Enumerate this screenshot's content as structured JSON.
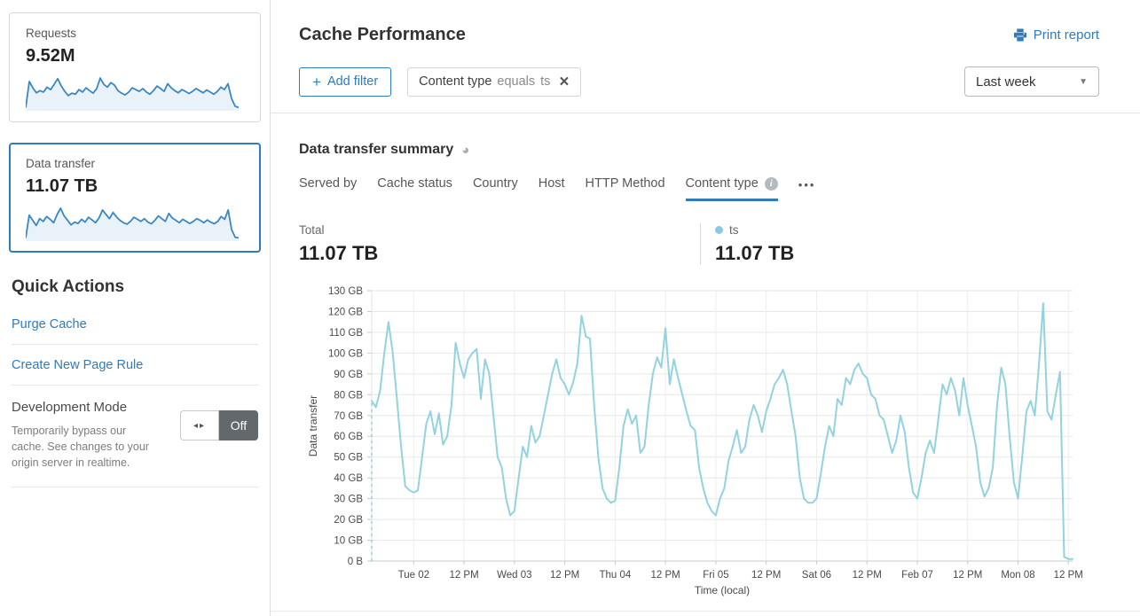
{
  "icons": {
    "plus": "+",
    "close": "×",
    "caret": "▼",
    "ellipsis": "•••",
    "toggle_arrows": "◂▸",
    "pie": "◕",
    "info": "i"
  },
  "sidebar": {
    "cards": [
      {
        "label": "Requests",
        "value": "9.52M",
        "selected": false,
        "sparkline": [
          4,
          78,
          60,
          46,
          52,
          48,
          62,
          55,
          70,
          86,
          66,
          50,
          38,
          45,
          42,
          55,
          48,
          60,
          52,
          45,
          58,
          88,
          70,
          62,
          75,
          68,
          52,
          45,
          40,
          48,
          60,
          55,
          50,
          58,
          48,
          42,
          52,
          65,
          58,
          50,
          72,
          60,
          52,
          46,
          55,
          50,
          44,
          50,
          58,
          52,
          46,
          54,
          48,
          42,
          50,
          62,
          55,
          72,
          30,
          8,
          4
        ]
      },
      {
        "label": "Data transfer",
        "value": "11.07 TB",
        "selected": true,
        "sparkline": [
          4,
          70,
          55,
          40,
          60,
          52,
          66,
          58,
          48,
          72,
          90,
          68,
          55,
          42,
          50,
          46,
          58,
          50,
          64,
          56,
          48,
          62,
          85,
          72,
          60,
          78,
          65,
          55,
          48,
          44,
          52,
          64,
          58,
          52,
          60,
          50,
          45,
          55,
          68,
          60,
          52,
          75,
          62,
          55,
          48,
          58,
          52,
          46,
          52,
          60,
          55,
          48,
          56,
          50,
          45,
          52,
          66,
          58,
          85,
          28,
          6,
          4
        ]
      }
    ],
    "quick_actions": {
      "title": "Quick Actions",
      "links": [
        "Purge Cache",
        "Create New Page Rule"
      ],
      "dev_mode": {
        "label": "Development Mode",
        "description": "Temporarily bypass our cache. See changes to your origin server in realtime.",
        "toggle_state": "Off"
      }
    }
  },
  "header": {
    "title": "Cache Performance",
    "print_label": "Print report"
  },
  "filters": {
    "add_filter_label": "Add filter",
    "chip": {
      "field": "Content type",
      "operator": "equals",
      "value": "ts"
    },
    "time_range": "Last week"
  },
  "summary": {
    "title": "Data transfer summary",
    "tabs": [
      {
        "label": "Served by",
        "active": false,
        "has_info": false
      },
      {
        "label": "Cache status",
        "active": false,
        "has_info": false
      },
      {
        "label": "Country",
        "active": false,
        "has_info": false
      },
      {
        "label": "Host",
        "active": false,
        "has_info": false
      },
      {
        "label": "HTTP Method",
        "active": false,
        "has_info": false
      },
      {
        "label": "Content type",
        "active": true,
        "has_info": true
      }
    ],
    "total_label": "Total",
    "total_value": "11.07 TB",
    "legend": {
      "name": "ts",
      "value": "11.07 TB",
      "color": "#8bc7e1"
    }
  },
  "chart_data": {
    "type": "line",
    "title": "Data transfer summary — ts (hourly, last week)",
    "xlabel": "Time (local)",
    "ylabel": "Data transfer",
    "ylim": [
      0,
      130
    ],
    "grid": true,
    "start_gap_dashed_line": true,
    "y_ticks": [
      [
        0,
        "0 B"
      ],
      [
        10,
        "10 GB"
      ],
      [
        20,
        "20 GB"
      ],
      [
        30,
        "30 GB"
      ],
      [
        40,
        "40 GB"
      ],
      [
        50,
        "50 GB"
      ],
      [
        60,
        "60 GB"
      ],
      [
        70,
        "70 GB"
      ],
      [
        80,
        "80 GB"
      ],
      [
        90,
        "90 GB"
      ],
      [
        100,
        "100 GB"
      ],
      [
        110,
        "110 GB"
      ],
      [
        120,
        "120 GB"
      ],
      [
        130,
        "130 GB"
      ]
    ],
    "x_ticks": [
      [
        10,
        "Tue 02"
      ],
      [
        22,
        "12 PM"
      ],
      [
        34,
        "Wed 03"
      ],
      [
        46,
        "12 PM"
      ],
      [
        58,
        "Thu 04"
      ],
      [
        70,
        "12 PM"
      ],
      [
        82,
        "Fri 05"
      ],
      [
        94,
        "12 PM"
      ],
      [
        106,
        "Sat 06"
      ],
      [
        118,
        "12 PM"
      ],
      [
        130,
        "Feb 07"
      ],
      [
        142,
        "12 PM"
      ],
      [
        154,
        "Mon 08"
      ],
      [
        166,
        "12 PM"
      ]
    ],
    "series": [
      {
        "name": "ts",
        "color": "#92d3de",
        "unit": "GB",
        "values": [
          77,
          74,
          82,
          100,
          115,
          100,
          78,
          55,
          36,
          34,
          33,
          34,
          50,
          66,
          72,
          61,
          71,
          56,
          60,
          75,
          105,
          95,
          88,
          97,
          100,
          102,
          78,
          97,
          90,
          70,
          50,
          45,
          30,
          22,
          24,
          40,
          55,
          50,
          65,
          57,
          60,
          70,
          80,
          90,
          97,
          88,
          85,
          80,
          86,
          95,
          118,
          108,
          107,
          75,
          50,
          35,
          30,
          28,
          29,
          45,
          65,
          73,
          66,
          70,
          52,
          55,
          75,
          90,
          98,
          93,
          112,
          85,
          97,
          88,
          80,
          72,
          65,
          63,
          45,
          35,
          28,
          24,
          22,
          30,
          35,
          48,
          55,
          63,
          52,
          55,
          68,
          75,
          70,
          62,
          72,
          78,
          85,
          88,
          92,
          85,
          72,
          60,
          40,
          30,
          28,
          28,
          30,
          42,
          55,
          65,
          60,
          78,
          75,
          88,
          85,
          92,
          95,
          90,
          88,
          80,
          78,
          70,
          68,
          60,
          52,
          58,
          70,
          62,
          45,
          33,
          30,
          40,
          52,
          58,
          52,
          68,
          85,
          80,
          88,
          82,
          70,
          88,
          75,
          65,
          55,
          38,
          31,
          35,
          45,
          75,
          93,
          85,
          60,
          38,
          30,
          50,
          72,
          77,
          70,
          95,
          124,
          72,
          68,
          80,
          91,
          2,
          1,
          1
        ]
      }
    ]
  }
}
